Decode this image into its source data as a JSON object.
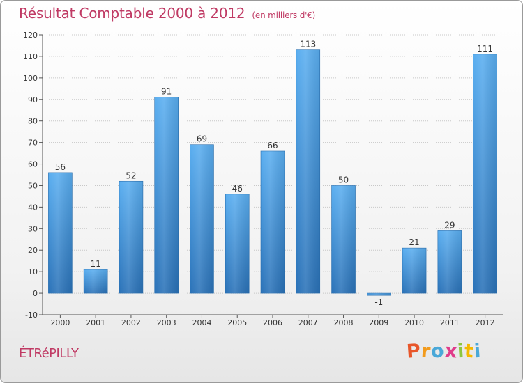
{
  "chart_data": {
    "type": "bar",
    "title": "Résultat Comptable 2000 à 2012",
    "subtitle": "(en milliers d'€)",
    "categories": [
      "2000",
      "2001",
      "2002",
      "2003",
      "2004",
      "2005",
      "2006",
      "2007",
      "2008",
      "2009",
      "2010",
      "2011",
      "2012"
    ],
    "values": [
      56,
      11,
      52,
      91,
      69,
      46,
      66,
      113,
      50,
      -1,
      21,
      29,
      111
    ],
    "data_labels": [
      "56",
      "11",
      "52",
      "91",
      "69",
      "46",
      "66",
      "113",
      "50",
      "-1",
      "21",
      "29",
      "111"
    ],
    "yticks": [
      -10,
      0,
      10,
      20,
      30,
      40,
      50,
      60,
      70,
      80,
      90,
      100,
      110,
      120
    ],
    "ylim": [
      -10,
      120
    ],
    "xlabel": "",
    "ylabel": "",
    "grid": true,
    "colors": {
      "bar": "#3a8fd6",
      "bar_light": "#5aaef0",
      "bar_dark": "#2a72b8",
      "title": "#c03a64"
    }
  },
  "footer": {
    "commune": "ÉTRéPILLY"
  },
  "logo": {
    "letters": [
      "P",
      "r",
      "o",
      "x",
      "i",
      "t",
      "i"
    ],
    "colors": [
      "#e8562a",
      "#f29b1d",
      "#4aa8d8",
      "#e03c8a",
      "#8dc63f",
      "#f5b800",
      "#4aa8d8"
    ]
  }
}
